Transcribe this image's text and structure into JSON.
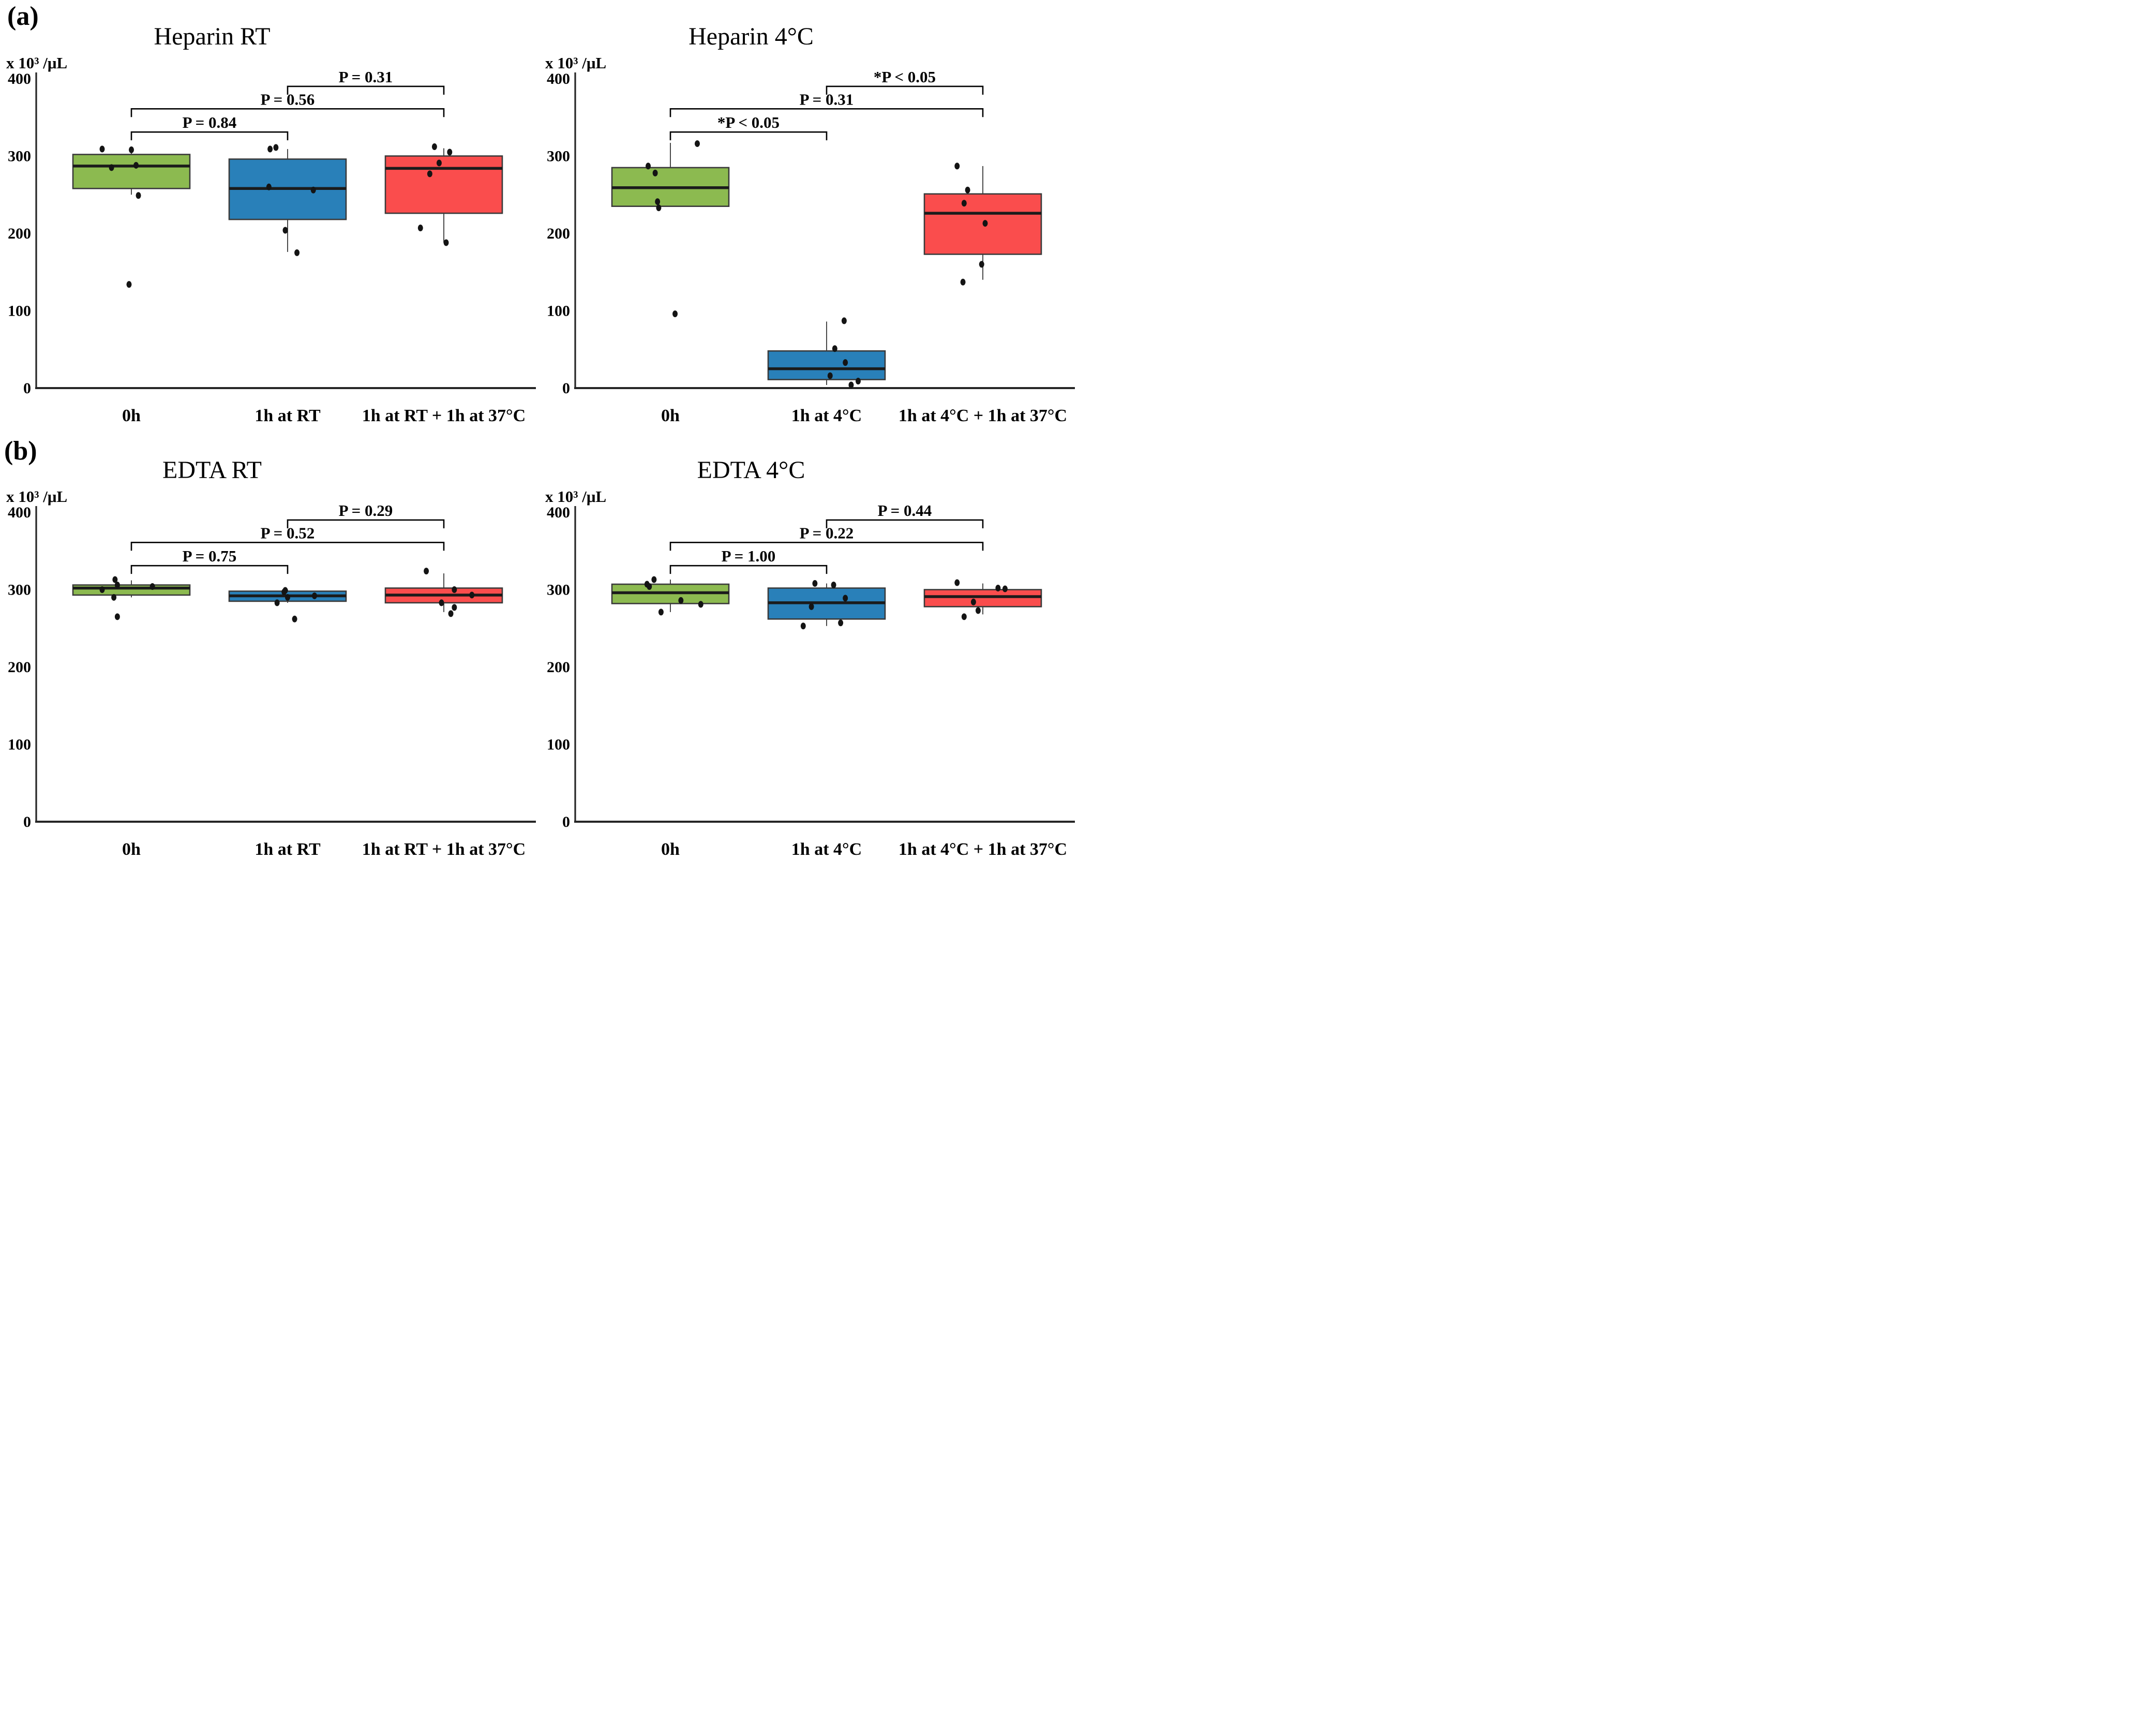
{
  "figure": {
    "panel_a_label": "(a)",
    "panel_b_label": "(b)",
    "colors": {
      "green": "#8CBA50",
      "blue": "#2980B9",
      "red": "#FA4D4D",
      "box_border": "#3A3A3A",
      "median": "#1B1B1B",
      "axis": "#262626",
      "point": "#141414",
      "bracket": "#000000"
    }
  },
  "chart_data": [
    {
      "type": "box",
      "title": "Heparin RT",
      "ylabel": "x 10³ /μL",
      "ylim": [
        0,
        400
      ],
      "yticks": [
        0,
        100,
        200,
        300,
        400
      ],
      "grid": false,
      "categories": [
        "0h",
        "1h at RT",
        "1h at RT + 1h at 37°C"
      ],
      "series": [
        {
          "name": "0h",
          "color_key": "green",
          "q1": 258,
          "median": 287,
          "q3": 302,
          "whisker_low": 250,
          "whisker_high": 308,
          "points": [
            [
              -0.25,
              309
            ],
            [
              0.0,
              308
            ],
            [
              -0.17,
              285
            ],
            [
              0.04,
              288
            ],
            [
              0.06,
              249
            ],
            [
              -0.02,
              134
            ]
          ]
        },
        {
          "name": "1h at RT",
          "color_key": "blue",
          "q1": 218,
          "median": 258,
          "q3": 296,
          "whisker_low": 176,
          "whisker_high": 309,
          "points": [
            [
              -0.15,
              309
            ],
            [
              -0.1,
              311
            ],
            [
              -0.16,
              260
            ],
            [
              0.22,
              256
            ],
            [
              -0.02,
              204
            ],
            [
              0.08,
              175
            ]
          ]
        },
        {
          "name": "1h at RT + 1h at 37°C",
          "color_key": "red",
          "q1": 226,
          "median": 284,
          "q3": 300,
          "whisker_low": 188,
          "whisker_high": 310,
          "points": [
            [
              -0.08,
              312
            ],
            [
              0.05,
              305
            ],
            [
              -0.04,
              291
            ],
            [
              -0.12,
              277
            ],
            [
              -0.2,
              207
            ],
            [
              0.02,
              188
            ]
          ]
        }
      ],
      "significance": [
        {
          "between": [
            0,
            1
          ],
          "y": 331,
          "label": "P = 0.84"
        },
        {
          "between": [
            0,
            2
          ],
          "y": 361,
          "label": "P = 0.56"
        },
        {
          "between": [
            1,
            2
          ],
          "y": 390,
          "label": "P = 0.31"
        }
      ]
    },
    {
      "type": "box",
      "title": "Heparin 4°C",
      "ylabel": "x 10³ /μL",
      "ylim": [
        0,
        400
      ],
      "yticks": [
        0,
        100,
        200,
        300,
        400
      ],
      "grid": false,
      "categories": [
        "0h",
        "1h at 4°C",
        "1h at 4°C + 1h at 37°C"
      ],
      "series": [
        {
          "name": "0h",
          "color_key": "green",
          "q1": 235,
          "median": 259,
          "q3": 285,
          "whisker_low": 235,
          "whisker_high": 317,
          "points": [
            [
              0.23,
              316
            ],
            [
              -0.19,
              287
            ],
            [
              -0.13,
              278
            ],
            [
              -0.11,
              241
            ],
            [
              -0.1,
              233
            ],
            [
              0.04,
              96
            ]
          ]
        },
        {
          "name": "1h at 4°C",
          "color_key": "blue",
          "q1": 11,
          "median": 25,
          "q3": 48,
          "whisker_low": 4,
          "whisker_high": 86,
          "points": [
            [
              0.15,
              87
            ],
            [
              0.07,
              51
            ],
            [
              0.16,
              33
            ],
            [
              0.03,
              16
            ],
            [
              0.27,
              9
            ],
            [
              0.21,
              4
            ]
          ]
        },
        {
          "name": "1h at 4°C + 1h at 37°C",
          "color_key": "red",
          "q1": 173,
          "median": 226,
          "q3": 251,
          "whisker_low": 140,
          "whisker_high": 287,
          "points": [
            [
              -0.22,
              287
            ],
            [
              -0.13,
              256
            ],
            [
              -0.16,
              239
            ],
            [
              0.02,
              213
            ],
            [
              -0.01,
              160
            ],
            [
              -0.17,
              137
            ]
          ]
        }
      ],
      "significance": [
        {
          "between": [
            0,
            1
          ],
          "y": 331,
          "label": "*P < 0.05"
        },
        {
          "between": [
            0,
            2
          ],
          "y": 361,
          "label": "P = 0.31"
        },
        {
          "between": [
            1,
            2
          ],
          "y": 390,
          "label": "*P < 0.05"
        }
      ]
    },
    {
      "type": "box",
      "title": "EDTA RT",
      "ylabel": "x 10³ /μL",
      "ylim": [
        0,
        400
      ],
      "yticks": [
        0,
        100,
        200,
        300,
        400
      ],
      "grid": false,
      "categories": [
        "0h",
        "1h at RT",
        "1h at RT + 1h at 37°C"
      ],
      "series": [
        {
          "name": "0h",
          "color_key": "green",
          "q1": 293,
          "median": 302,
          "q3": 306,
          "whisker_low": 290,
          "whisker_high": 312,
          "points": [
            [
              -0.14,
              313
            ],
            [
              -0.12,
              306
            ],
            [
              0.18,
              304
            ],
            [
              -0.25,
              300
            ],
            [
              -0.15,
              290
            ],
            [
              -0.12,
              265
            ]
          ]
        },
        {
          "name": "1h at RT",
          "color_key": "blue",
          "q1": 285,
          "median": 292,
          "q3": 298,
          "whisker_low": 283,
          "whisker_high": 300,
          "points": [
            [
              -0.02,
              299
            ],
            [
              -0.03,
              297
            ],
            [
              0.23,
              292
            ],
            [
              0.0,
              290
            ],
            [
              -0.09,
              283
            ],
            [
              0.06,
              262
            ]
          ]
        },
        {
          "name": "1h at RT + 1h at 37°C",
          "color_key": "red",
          "q1": 283,
          "median": 293,
          "q3": 302,
          "whisker_low": 271,
          "whisker_high": 321,
          "points": [
            [
              -0.15,
              324
            ],
            [
              0.09,
              300
            ],
            [
              0.24,
              293
            ],
            [
              -0.02,
              283
            ],
            [
              0.09,
              277
            ],
            [
              0.06,
              269
            ]
          ]
        }
      ],
      "significance": [
        {
          "between": [
            0,
            1
          ],
          "y": 331,
          "label": "P = 0.75"
        },
        {
          "between": [
            0,
            2
          ],
          "y": 361,
          "label": "P = 0.52"
        },
        {
          "between": [
            1,
            2
          ],
          "y": 390,
          "label": "P = 0.29"
        }
      ]
    },
    {
      "type": "box",
      "title": "EDTA 4°C",
      "ylabel": "x 10³ /μL",
      "ylim": [
        0,
        400
      ],
      "yticks": [
        0,
        100,
        200,
        300,
        400
      ],
      "grid": false,
      "categories": [
        "0h",
        "1h at 4°C",
        "1h at 4°C + 1h at 37°C"
      ],
      "series": [
        {
          "name": "0h",
          "color_key": "green",
          "q1": 282,
          "median": 296,
          "q3": 307,
          "whisker_low": 271,
          "whisker_high": 313,
          "points": [
            [
              -0.14,
              313
            ],
            [
              -0.2,
              307
            ],
            [
              -0.18,
              304
            ],
            [
              0.09,
              286
            ],
            [
              0.26,
              281
            ],
            [
              -0.08,
              271
            ]
          ]
        },
        {
          "name": "1h at 4°C",
          "color_key": "blue",
          "q1": 262,
          "median": 283,
          "q3": 302,
          "whisker_low": 253,
          "whisker_high": 308,
          "points": [
            [
              -0.1,
              308
            ],
            [
              0.06,
              306
            ],
            [
              0.16,
              289
            ],
            [
              -0.13,
              278
            ],
            [
              0.12,
              257
            ],
            [
              -0.2,
              253
            ]
          ]
        },
        {
          "name": "1h at 4°C + 1h at 37°C",
          "color_key": "red",
          "q1": 278,
          "median": 291,
          "q3": 300,
          "whisker_low": 268,
          "whisker_high": 308,
          "points": [
            [
              -0.22,
              309
            ],
            [
              0.13,
              302
            ],
            [
              0.19,
              301
            ],
            [
              -0.08,
              284
            ],
            [
              -0.04,
              273
            ],
            [
              -0.16,
              265
            ]
          ]
        }
      ],
      "significance": [
        {
          "between": [
            0,
            1
          ],
          "y": 331,
          "label": "P = 1.00"
        },
        {
          "between": [
            0,
            2
          ],
          "y": 361,
          "label": "P = 0.22"
        },
        {
          "between": [
            1,
            2
          ],
          "y": 390,
          "label": "P = 0.44"
        }
      ]
    }
  ]
}
